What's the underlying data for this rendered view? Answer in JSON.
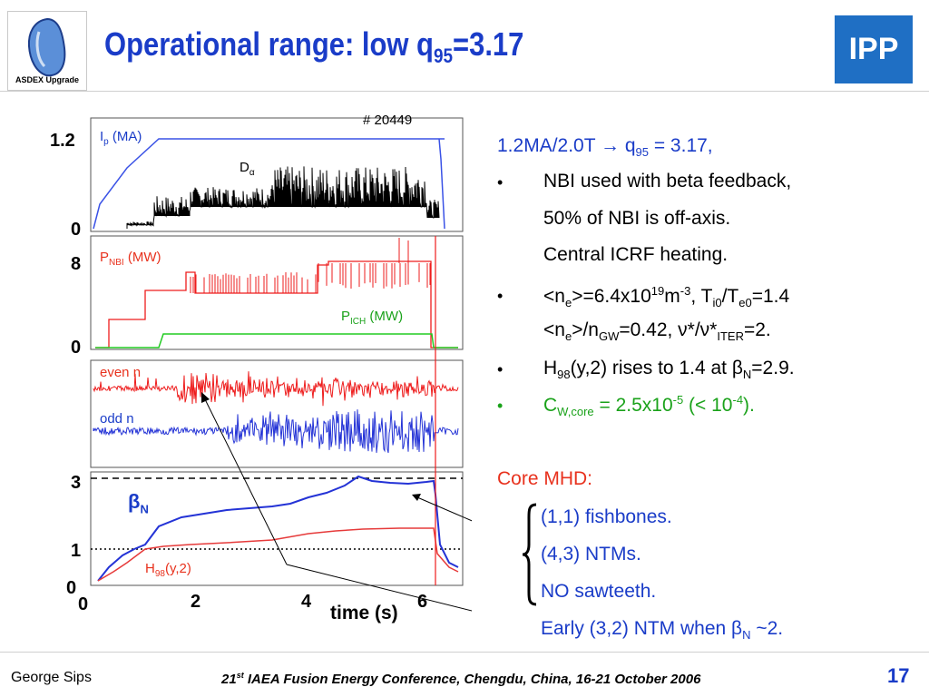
{
  "header": {
    "title_main": "Operational range:  low q",
    "title_sub": "95",
    "title_tail": "=3.17",
    "logo_left_text": "ASDEX Upgrade",
    "logo_right_text": "IPP"
  },
  "figure": {
    "shot": "# 20449",
    "panel1": {
      "ymax": "1.2",
      "ymin": "0",
      "label_ip": "I",
      "label_ip_sub": "p",
      "label_ip_unit": " (MA)",
      "label_da": "D",
      "label_da_sub": "α"
    },
    "panel2": {
      "ymax": "8",
      "ymin": "0",
      "label_pnbi": "P",
      "label_pnbi_sub": "NBI",
      "label_pnbi_unit": " (MW)",
      "label_pich": "P",
      "label_pich_sub": "ICH",
      "label_pich_unit": " (MW)"
    },
    "panel3": {
      "label_even": "even n",
      "label_odd": "odd n"
    },
    "panel4": {
      "y3": "3",
      "y1": "1",
      "y0": "0",
      "label_beta": "β",
      "label_beta_sub": "N",
      "label_h98": "H",
      "label_h98_sub": "98",
      "label_h98_tail": "(y,2)"
    },
    "xaxis": {
      "t0": "0",
      "t2": "2",
      "t4": "4",
      "t6": "6",
      "label": "time (s)"
    }
  },
  "text": {
    "line1_a": "1.2MA/2.0T ",
    "line1_arrow": "→",
    "line1_b": " q",
    "line1_sub": "95",
    "line1_c": " = 3.17,",
    "b1_l1": "NBI used with beta feedback,",
    "b1_l2": "50% of NBI is off-axis.",
    "b1_l3": "Central ICRF heating.",
    "b2_l1_a": "<n",
    "b2_l1_sub1": "e",
    "b2_l1_b": ">=6.4x10",
    "b2_l1_sup1": "19",
    "b2_l1_c": "m",
    "b2_l1_sup2": "-3",
    "b2_l1_d": ", T",
    "b2_l1_sub2": "i0",
    "b2_l1_e": "/T",
    "b2_l1_sub3": "e0",
    "b2_l1_f": "=1.4",
    "b2_l2_a": "<n",
    "b2_l2_sub1": "e",
    "b2_l2_b": ">/n",
    "b2_l2_sub2": "GW",
    "b2_l2_c": "=0.42, ν*/ν*",
    "b2_l2_sub3": "ITER",
    "b2_l2_d": "=2.",
    "b3_a": "H",
    "b3_sub1": "98",
    "b3_b": "(y,2) rises to 1.4 at β",
    "b3_sub2": "N",
    "b3_c": "=2.9.",
    "b4_a": "C",
    "b4_sub": "W,core",
    "b4_b": " = 2.5x10",
    "b4_sup1": "-5",
    "b4_c": "  (< 10",
    "b4_sup2": "-4",
    "b4_d": ").",
    "core_mhd": "Core MHD:",
    "m1": "(1,1) fishbones.",
    "m2": "(4,3) NTMs.",
    "m3": "NO sawteeth.",
    "m4_a": "Early (3,2) NTM when β",
    "m4_sub": "N",
    "m4_b": " ~2.",
    "bullet": "•"
  },
  "footer": {
    "author": "George Sips",
    "conf_sup": "st",
    "conf_num": "21",
    "conf_text": " IAEA Fusion Energy Conference, Chengdu, China, 16-21 October 2006",
    "page": "17"
  },
  "colors": {
    "title": "#1a3cc8",
    "blue_trace": "#3a52e6",
    "red_trace": "#ee1c1c",
    "green_trace": "#22cc22"
  }
}
